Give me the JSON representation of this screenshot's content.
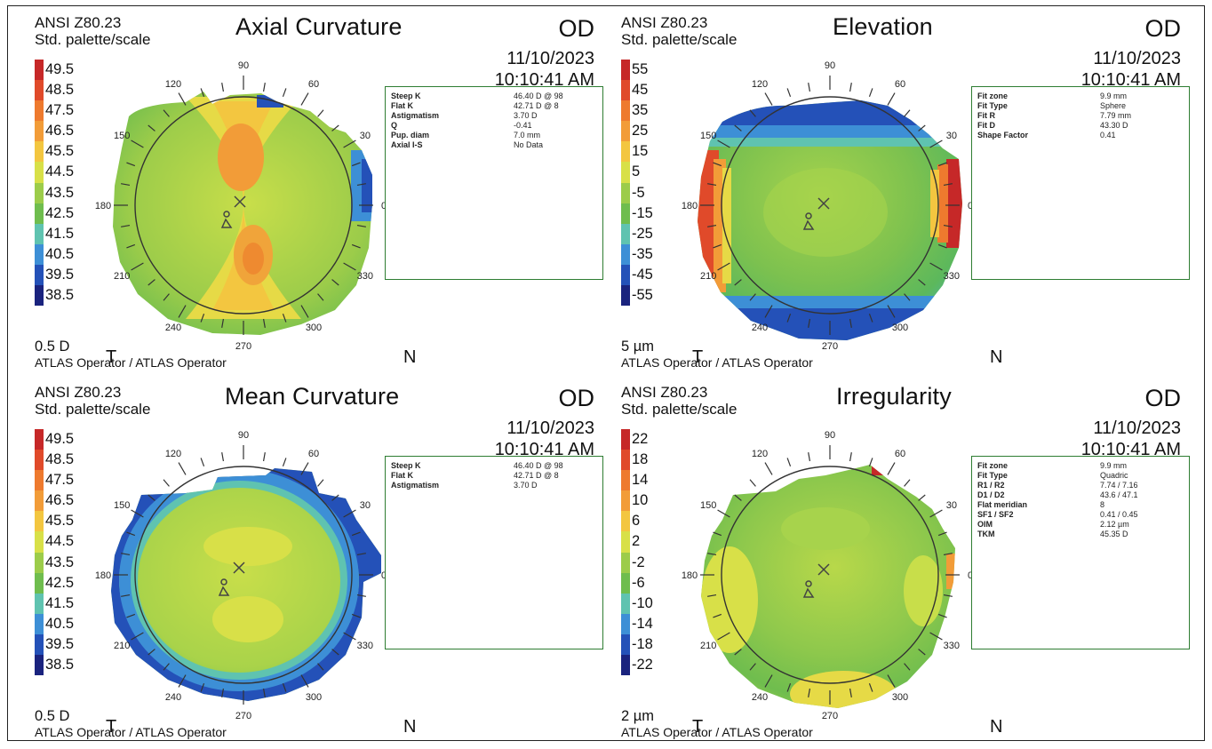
{
  "panels": [
    {
      "standard": "ANSI Z80.23",
      "palette": "Std. palette/scale",
      "title": "Axial Curvature",
      "eye": "OD",
      "date": "11/10/2023",
      "time": "10:10:41 AM",
      "scale": [
        "49.5",
        "48.5",
        "47.5",
        "46.5",
        "45.5",
        "44.5",
        "43.5",
        "42.5",
        "41.5",
        "40.5",
        "39.5",
        "38.5"
      ],
      "step": "0.5 D",
      "operator": "ATLAS Operator / ATLAS Operator",
      "temporal": "T",
      "nasal": "N",
      "angles": [
        "90",
        "60",
        "30",
        "0",
        "330",
        "300",
        "270",
        "240",
        "210",
        "180",
        "150",
        "120"
      ],
      "info": [
        {
          "key": "Steep K",
          "value": "46.40 D @ 98"
        },
        {
          "key": "Flat K",
          "value": "42.71 D @ 8"
        },
        {
          "key": "Astigmatism",
          "value": "3.70 D"
        },
        {
          "key": "Q",
          "value": "-0.41"
        },
        {
          "key": "Pup. diam",
          "value": "7.0 mm"
        },
        {
          "key": "Axial I-S",
          "value": "No Data"
        }
      ]
    },
    {
      "standard": "ANSI Z80.23",
      "palette": "Std. palette/scale",
      "title": "Elevation",
      "eye": "OD",
      "date": "11/10/2023",
      "time": "10:10:41 AM",
      "scale": [
        "55",
        "45",
        "35",
        "25",
        "15",
        "5",
        "-5",
        "-15",
        "-25",
        "-35",
        "-45",
        "-55"
      ],
      "step": "5 µm",
      "operator": "ATLAS Operator / ATLAS Operator",
      "temporal": "T",
      "nasal": "N",
      "angles": [
        "90",
        "60",
        "30",
        "0",
        "330",
        "300",
        "270",
        "240",
        "210",
        "180",
        "150",
        "120"
      ],
      "info": [
        {
          "key": "Fit zone",
          "value": "9.9 mm"
        },
        {
          "key": "Fit Type",
          "value": "Sphere"
        },
        {
          "key": "Fit R",
          "value": "7.79 mm"
        },
        {
          "key": "Fit D",
          "value": "43.30 D"
        },
        {
          "key": "Shape Factor",
          "value": "0.41"
        }
      ]
    },
    {
      "standard": "ANSI Z80.23",
      "palette": "Std. palette/scale",
      "title": "Mean Curvature",
      "eye": "OD",
      "date": "11/10/2023",
      "time": "10:10:41 AM",
      "scale": [
        "49.5",
        "48.5",
        "47.5",
        "46.5",
        "45.5",
        "44.5",
        "43.5",
        "42.5",
        "41.5",
        "40.5",
        "39.5",
        "38.5"
      ],
      "step": "0.5 D",
      "operator": "ATLAS Operator / ATLAS Operator",
      "temporal": "T",
      "nasal": "N",
      "angles": [
        "90",
        "60",
        "30",
        "0",
        "330",
        "300",
        "270",
        "240",
        "210",
        "180",
        "150",
        "120"
      ],
      "info": [
        {
          "key": "Steep K",
          "value": "46.40 D @ 98"
        },
        {
          "key": "Flat K",
          "value": "42.71 D @ 8"
        },
        {
          "key": "Astigmatism",
          "value": "3.70 D"
        }
      ]
    },
    {
      "standard": "ANSI Z80.23",
      "palette": "Std. palette/scale",
      "title": "Irregularity",
      "eye": "OD",
      "date": "11/10/2023",
      "time": "10:10:41 AM",
      "scale": [
        "22",
        "18",
        "14",
        "10",
        "6",
        "2",
        "-2",
        "-6",
        "-10",
        "-14",
        "-18",
        "-22"
      ],
      "step": "2 µm",
      "operator": "ATLAS Operator / ATLAS Operator",
      "temporal": "T",
      "nasal": "N",
      "angles": [
        "90",
        "60",
        "30",
        "0",
        "330",
        "300",
        "270",
        "240",
        "210",
        "180",
        "150",
        "120"
      ],
      "info": [
        {
          "key": "Fit zone",
          "value": "9.9 mm"
        },
        {
          "key": "Fit Type",
          "value": "Quadric"
        },
        {
          "key": "R1 / R2",
          "value": "7.74 / 7.16"
        },
        {
          "key": "D1 / D2",
          "value": "43.6 / 47.1"
        },
        {
          "key": "Flat meridian",
          "value": "8"
        },
        {
          "key": "SF1 / SF2",
          "value": "0.41 / 0.45"
        },
        {
          "key": "OIM",
          "value": "2.12 µm"
        },
        {
          "key": "TKM",
          "value": "45.35 D"
        }
      ]
    }
  ],
  "colors": {
    "scale": [
      "#c62828",
      "#e04a2a",
      "#ee7a2e",
      "#f29c38",
      "#f3c640",
      "#d8e048",
      "#9ccc4a",
      "#6fbd4e",
      "#5fc3b0",
      "#3d8fd6",
      "#2451b8",
      "#1a237e"
    ],
    "infobox_border": "#2e7d32"
  }
}
